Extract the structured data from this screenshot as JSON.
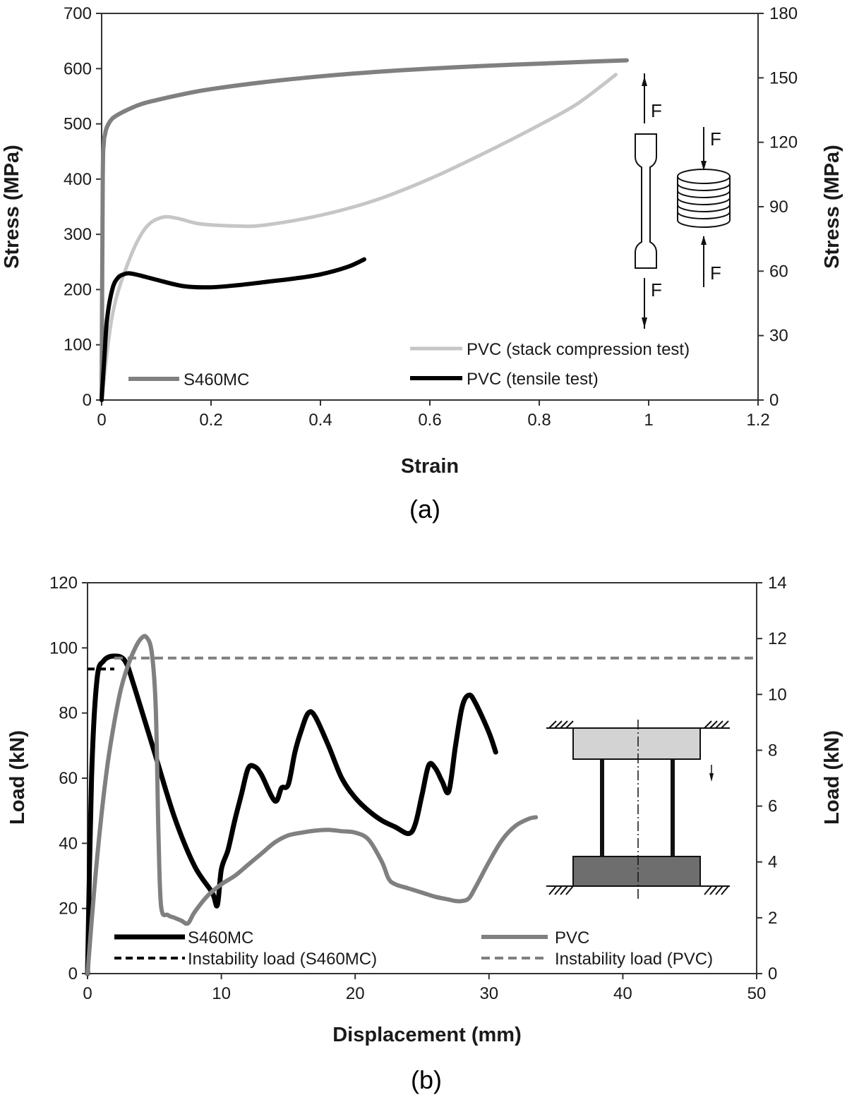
{
  "chart_data": [
    {
      "type": "line",
      "caption": "(a)",
      "xlabel": "Strain",
      "ylabel": "Stress (MPa)",
      "y2label": "Stress (MPa)",
      "xlim": [
        0,
        1.2
      ],
      "ylim": [
        0,
        700
      ],
      "y2lim": [
        0,
        180
      ],
      "xticks": [
        0,
        0.2,
        0.4,
        0.6,
        0.8,
        1,
        1.2
      ],
      "xtick_labels": [
        "0",
        "0.2",
        "0.4",
        "0.6",
        "0.8",
        "1",
        "1.2"
      ],
      "yticks": [
        0,
        100,
        200,
        300,
        400,
        500,
        600,
        700
      ],
      "y2ticks": [
        0,
        30,
        60,
        90,
        120,
        150,
        180
      ],
      "grid": false,
      "annotation_force": "F",
      "series": [
        {
          "name": "S460MC",
          "axis": "left",
          "color": "#808080",
          "width": 6,
          "x": [
            0,
            0.002,
            0.004,
            0.006,
            0.01,
            0.02,
            0.04,
            0.07,
            0.1,
            0.15,
            0.2,
            0.3,
            0.4,
            0.5,
            0.6,
            0.7,
            0.8,
            0.9,
            0.96
          ],
          "y": [
            0,
            400,
            465,
            480,
            495,
            510,
            522,
            535,
            543,
            554,
            563,
            576,
            586,
            594,
            600,
            605,
            609,
            613,
            615
          ]
        },
        {
          "name": "PVC (stack compression test)",
          "axis": "right",
          "color": "#c6c6c6",
          "width": 5,
          "x": [
            0,
            0.02,
            0.05,
            0.08,
            0.11,
            0.14,
            0.18,
            0.25,
            0.3,
            0.4,
            0.5,
            0.6,
            0.7,
            0.8,
            0.87,
            0.94
          ],
          "y": [
            0,
            40,
            65,
            80,
            85,
            84.5,
            82,
            81,
            81.5,
            86,
            93,
            103,
            115,
            128,
            138,
            151.5
          ]
        },
        {
          "name": "PVC (tensile test)",
          "axis": "right",
          "color": "#000000",
          "width": 6,
          "x": [
            0,
            0.005,
            0.01,
            0.02,
            0.03,
            0.04,
            0.05,
            0.07,
            0.1,
            0.15,
            0.2,
            0.25,
            0.3,
            0.35,
            0.4,
            0.45,
            0.48
          ],
          "y": [
            0,
            20,
            38,
            52,
            57,
            58.5,
            59,
            58,
            56,
            53,
            52.5,
            53.5,
            55,
            56.5,
            58.5,
            62,
            65.5
          ]
        }
      ]
    },
    {
      "type": "line",
      "caption": "(b)",
      "xlabel": "Displacement (mm)",
      "ylabel": "Load (kN)",
      "y2label": "Load (kN)",
      "xlim": [
        0,
        50
      ],
      "ylim": [
        0,
        120
      ],
      "y2lim": [
        0,
        14
      ],
      "xticks": [
        0,
        10,
        20,
        30,
        40,
        50
      ],
      "yticks": [
        0,
        20,
        40,
        60,
        80,
        100,
        120
      ],
      "y2ticks": [
        0,
        2,
        4,
        6,
        8,
        10,
        12,
        14
      ],
      "grid": false,
      "series": [
        {
          "name": "S460MC",
          "axis": "left",
          "color": "#000000",
          "width": 7,
          "x": [
            0,
            0.3,
            0.7,
            1.2,
            2,
            2.8,
            3.5,
            5,
            6.5,
            8,
            9.3,
            9.7,
            10,
            10.5,
            11,
            11.5,
            12,
            12.5,
            13,
            14,
            14.5,
            15,
            15.5,
            16,
            16.5,
            17,
            18,
            19,
            20,
            21,
            22,
            23,
            24,
            24.5,
            25,
            25.5,
            26,
            26.5,
            27,
            27.5,
            28,
            28.5,
            29,
            30,
            30.5
          ],
          "y": [
            0,
            60,
            90,
            96,
            97.5,
            96,
            88,
            68,
            48,
            33,
            25,
            21,
            32,
            38,
            47,
            55,
            63,
            63.5,
            61,
            53,
            57,
            58,
            68,
            75,
            80,
            79,
            70,
            60,
            54,
            50,
            47,
            45,
            43,
            46,
            55,
            64,
            63,
            59,
            56,
            70,
            82,
            85.5,
            83,
            74,
            68
          ]
        },
        {
          "name": "PVC",
          "axis": "right",
          "color": "#808080",
          "width": 6,
          "x": [
            0,
            0.5,
            1,
            1.5,
            2,
            2.5,
            3,
            3.5,
            4,
            4.4,
            4.8,
            5.1,
            5.3,
            5.5,
            6,
            6.5,
            7,
            7.5,
            8,
            9,
            10,
            11,
            12,
            13,
            14,
            15,
            16,
            17,
            18,
            19,
            20,
            21,
            22,
            22.5,
            23,
            24,
            25,
            26,
            27,
            27.5,
            28,
            28.5,
            29,
            30,
            31,
            32,
            33,
            33.5
          ],
          "y": [
            0,
            3,
            5.5,
            7.5,
            9,
            10.2,
            11,
            11.6,
            12,
            12.05,
            11.5,
            9.5,
            5,
            2.4,
            2.1,
            2.0,
            1.9,
            1.8,
            2.2,
            2.8,
            3.2,
            3.5,
            3.9,
            4.3,
            4.7,
            4.95,
            5.05,
            5.12,
            5.15,
            5.1,
            5.05,
            4.8,
            4.0,
            3.4,
            3.2,
            3.05,
            2.9,
            2.75,
            2.65,
            2.6,
            2.6,
            2.7,
            3.1,
            4.0,
            4.8,
            5.3,
            5.55,
            5.6
          ]
        },
        {
          "name": "Instability load (S460MC)",
          "axis": "left",
          "color": "#000000",
          "width": 4,
          "dash": "10,6",
          "x": [
            0,
            2
          ],
          "y": [
            93.5,
            93.5
          ]
        },
        {
          "name": "Instability load (PVC)",
          "axis": "right",
          "color": "#808080",
          "width": 4,
          "dash": "12,7",
          "x": [
            2,
            50
          ],
          "y": [
            11.3,
            11.3
          ]
        }
      ]
    }
  ]
}
